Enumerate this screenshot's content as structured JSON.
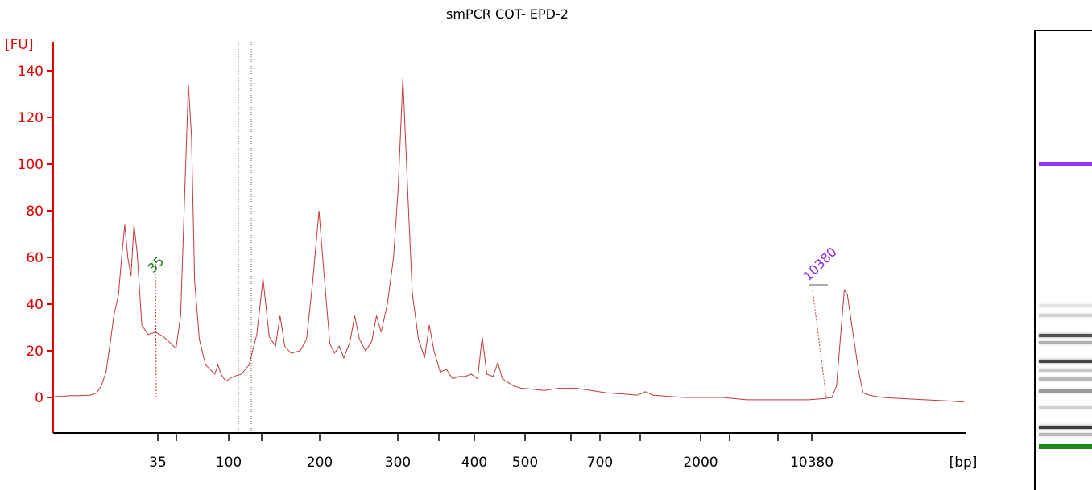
{
  "title": "smPCR COT- EPD-2",
  "colors": {
    "trace": "#c0393b",
    "axis": "#e00000",
    "lower_marker": "#1e7a1e",
    "upper_marker": "#8a2be2",
    "gel_lower": "#1a8a1a",
    "gel_upper": "#9933ff"
  },
  "chart_data": {
    "type": "line",
    "title": "smPCR COT- EPD-2",
    "ylabel": "[FU]",
    "xlabel": "[bp]",
    "ylim": [
      -16,
      148
    ],
    "yticks": [
      0,
      20,
      40,
      60,
      80,
      100,
      120,
      140
    ],
    "xticks": [
      "35",
      "100",
      "200",
      "300",
      "400",
      "500",
      "700",
      "2000",
      "10380"
    ],
    "x_axis_ticks_unlabeled": 6,
    "marker_annotations": [
      {
        "label": "35",
        "color": "lower_marker"
      },
      {
        "label": "10380",
        "color": "upper_marker"
      }
    ],
    "series": [
      {
        "points": [
          [
            0,
            0.4
          ],
          [
            0.05,
            0.5
          ],
          [
            0.1,
            0.8
          ],
          [
            0.15,
            0.8
          ],
          [
            0.2,
            0.9
          ],
          [
            0.23,
            1.0
          ],
          [
            0.27,
            2.0
          ],
          [
            0.3,
            5.0
          ],
          [
            0.33,
            11.0
          ],
          [
            0.36,
            25.0
          ],
          [
            0.38,
            35.0
          ],
          [
            0.41,
            44.0
          ],
          [
            0.43,
            60.0
          ],
          [
            0.45,
            74.0
          ],
          [
            0.47,
            60.0
          ],
          [
            0.49,
            52.0
          ],
          [
            0.51,
            74.0
          ],
          [
            0.53,
            62.0
          ],
          [
            0.56,
            31.0
          ],
          [
            0.6,
            27.0
          ],
          [
            0.65,
            28.0
          ],
          [
            0.7,
            26.0
          ],
          [
            0.75,
            23.0
          ],
          [
            0.78,
            21.0
          ],
          [
            0.81,
            35.0
          ],
          [
            0.84,
            95.0
          ],
          [
            0.86,
            134.0
          ],
          [
            0.88,
            112.0
          ],
          [
            0.9,
            50.0
          ],
          [
            0.93,
            25.0
          ],
          [
            0.97,
            14.0
          ],
          [
            1.0,
            12.0
          ],
          [
            1.03,
            10.0
          ],
          [
            1.05,
            14.0
          ],
          [
            1.07,
            10.0
          ],
          [
            1.1,
            7.0
          ],
          [
            1.15,
            9.0
          ],
          [
            1.2,
            10.0
          ],
          [
            1.25,
            14.0
          ],
          [
            1.3,
            27.0
          ],
          [
            1.34,
            51.0
          ],
          [
            1.38,
            26.0
          ],
          [
            1.42,
            22.0
          ],
          [
            1.45,
            35.0
          ],
          [
            1.48,
            22.0
          ],
          [
            1.52,
            19.0
          ],
          [
            1.58,
            20.0
          ],
          [
            1.62,
            25.0
          ],
          [
            1.66,
            50.0
          ],
          [
            1.7,
            80.0
          ],
          [
            1.73,
            55.0
          ],
          [
            1.77,
            23.0
          ],
          [
            1.8,
            19.0
          ],
          [
            1.83,
            22.0
          ],
          [
            1.86,
            17.0
          ],
          [
            1.9,
            24.0
          ],
          [
            1.93,
            35.0
          ],
          [
            1.96,
            25.0
          ],
          [
            2.0,
            20.0
          ],
          [
            2.04,
            24.0
          ],
          [
            2.07,
            35.0
          ],
          [
            2.1,
            28.0
          ],
          [
            2.14,
            40.0
          ],
          [
            2.18,
            60.0
          ],
          [
            2.21,
            90.0
          ],
          [
            2.24,
            137.0
          ],
          [
            2.27,
            90.0
          ],
          [
            2.3,
            45.0
          ],
          [
            2.34,
            25.0
          ],
          [
            2.38,
            17.0
          ],
          [
            2.41,
            31.0
          ],
          [
            2.44,
            20.0
          ],
          [
            2.48,
            11.0
          ],
          [
            2.52,
            12.0
          ],
          [
            2.56,
            8.0
          ],
          [
            2.6,
            9.0
          ],
          [
            2.64,
            9.0
          ],
          [
            2.68,
            10.0
          ],
          [
            2.72,
            8.0
          ],
          [
            2.75,
            26.0
          ],
          [
            2.78,
            10.0
          ],
          [
            2.82,
            9.0
          ],
          [
            2.85,
            15.0
          ],
          [
            2.88,
            8.0
          ],
          [
            2.95,
            5.0
          ],
          [
            3.0,
            4.0
          ],
          [
            3.08,
            3.5
          ],
          [
            3.15,
            3.0
          ],
          [
            3.25,
            4.0
          ],
          [
            3.35,
            4.0
          ],
          [
            3.45,
            3.0
          ],
          [
            3.55,
            2.0
          ],
          [
            3.65,
            1.5
          ],
          [
            3.75,
            1.0
          ],
          [
            3.8,
            2.5
          ],
          [
            3.85,
            1.0
          ],
          [
            3.95,
            0.5
          ],
          [
            4.05,
            0.0
          ],
          [
            4.15,
            0.0
          ],
          [
            4.3,
            0.0
          ],
          [
            4.45,
            -1.0
          ],
          [
            4.6,
            -1.0
          ],
          [
            4.75,
            -1.0
          ],
          [
            4.85,
            -1.0
          ],
          [
            4.95,
            -0.5
          ],
          [
            5.0,
            0.0
          ],
          [
            5.03,
            5.0
          ],
          [
            5.06,
            30.0
          ],
          [
            5.08,
            46.0
          ],
          [
            5.1,
            44.0
          ],
          [
            5.13,
            30.0
          ],
          [
            5.17,
            12.0
          ],
          [
            5.2,
            2.0
          ],
          [
            5.24,
            1.0
          ],
          [
            5.28,
            0.5
          ],
          [
            5.33,
            0.0
          ],
          [
            5.45,
            -0.5
          ],
          [
            5.6,
            -1.0
          ],
          [
            5.75,
            -1.5
          ],
          [
            5.85,
            -2.0
          ]
        ]
      }
    ]
  },
  "gel": {
    "bands": [
      {
        "position": 0.285,
        "darkness": 0.9,
        "kind": "upper_marker"
      },
      {
        "position": 0.595,
        "darkness": 0.12,
        "kind": "band"
      },
      {
        "position": 0.615,
        "darkness": 0.2,
        "kind": "band"
      },
      {
        "position": 0.66,
        "darkness": 0.75,
        "kind": "band"
      },
      {
        "position": 0.675,
        "darkness": 0.35,
        "kind": "band"
      },
      {
        "position": 0.715,
        "darkness": 0.8,
        "kind": "band"
      },
      {
        "position": 0.735,
        "darkness": 0.25,
        "kind": "band"
      },
      {
        "position": 0.755,
        "darkness": 0.3,
        "kind": "band"
      },
      {
        "position": 0.78,
        "darkness": 0.45,
        "kind": "band"
      },
      {
        "position": 0.815,
        "darkness": 0.2,
        "kind": "band"
      },
      {
        "position": 0.86,
        "darkness": 0.85,
        "kind": "band"
      },
      {
        "position": 0.875,
        "darkness": 0.3,
        "kind": "band"
      },
      {
        "position": 0.9,
        "darkness": 0.9,
        "kind": "lower_marker"
      }
    ]
  }
}
